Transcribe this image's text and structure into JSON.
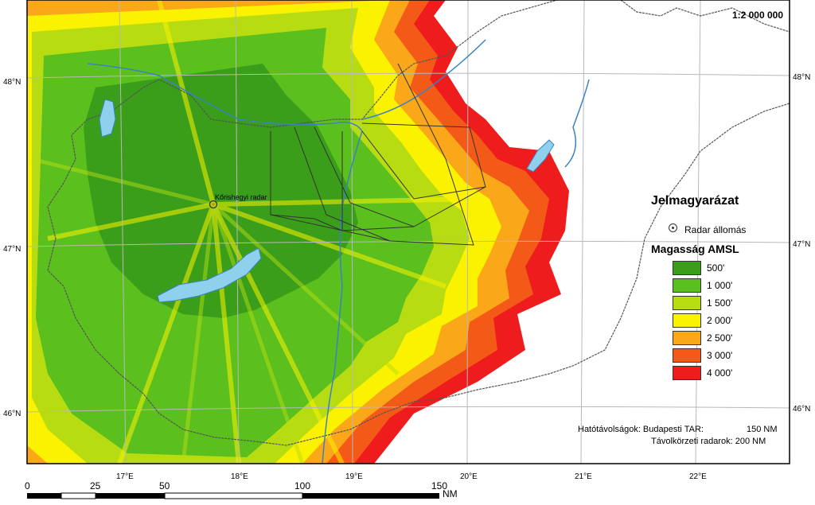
{
  "map": {
    "scale_note": "1:2 000 000",
    "radar_label": "Kőrishegyi radar",
    "lat_labels": [
      "48°N",
      "47°N",
      "46°N"
    ],
    "lon_labels": [
      "17°E",
      "18°E",
      "19°E",
      "20°E",
      "21°E",
      "22°E"
    ]
  },
  "legend": {
    "title": "Jelmagyarázat",
    "station_label": "Radar állomás",
    "subtitle": "Magasság AMSL",
    "items": [
      {
        "label": "500'",
        "color": "#3a9e1a"
      },
      {
        "label": "1 000'",
        "color": "#5bbf1e"
      },
      {
        "label": "1 500'",
        "color": "#b7dd12"
      },
      {
        "label": "2 000'",
        "color": "#fbf200"
      },
      {
        "label": "2 500'",
        "color": "#fba71a"
      },
      {
        "label": "3 000'",
        "color": "#f45a17"
      },
      {
        "label": "4 000'",
        "color": "#ee1c1c"
      }
    ]
  },
  "info": {
    "line1_label": "Hatótávolságok: Budapesti TAR:",
    "line1_value": "150 NM",
    "line2": "Távolkörzeti radarok: 200 NM"
  },
  "scalebar": {
    "ticks": [
      "0",
      "25",
      "50",
      "100",
      "150"
    ],
    "unit": "NM"
  }
}
